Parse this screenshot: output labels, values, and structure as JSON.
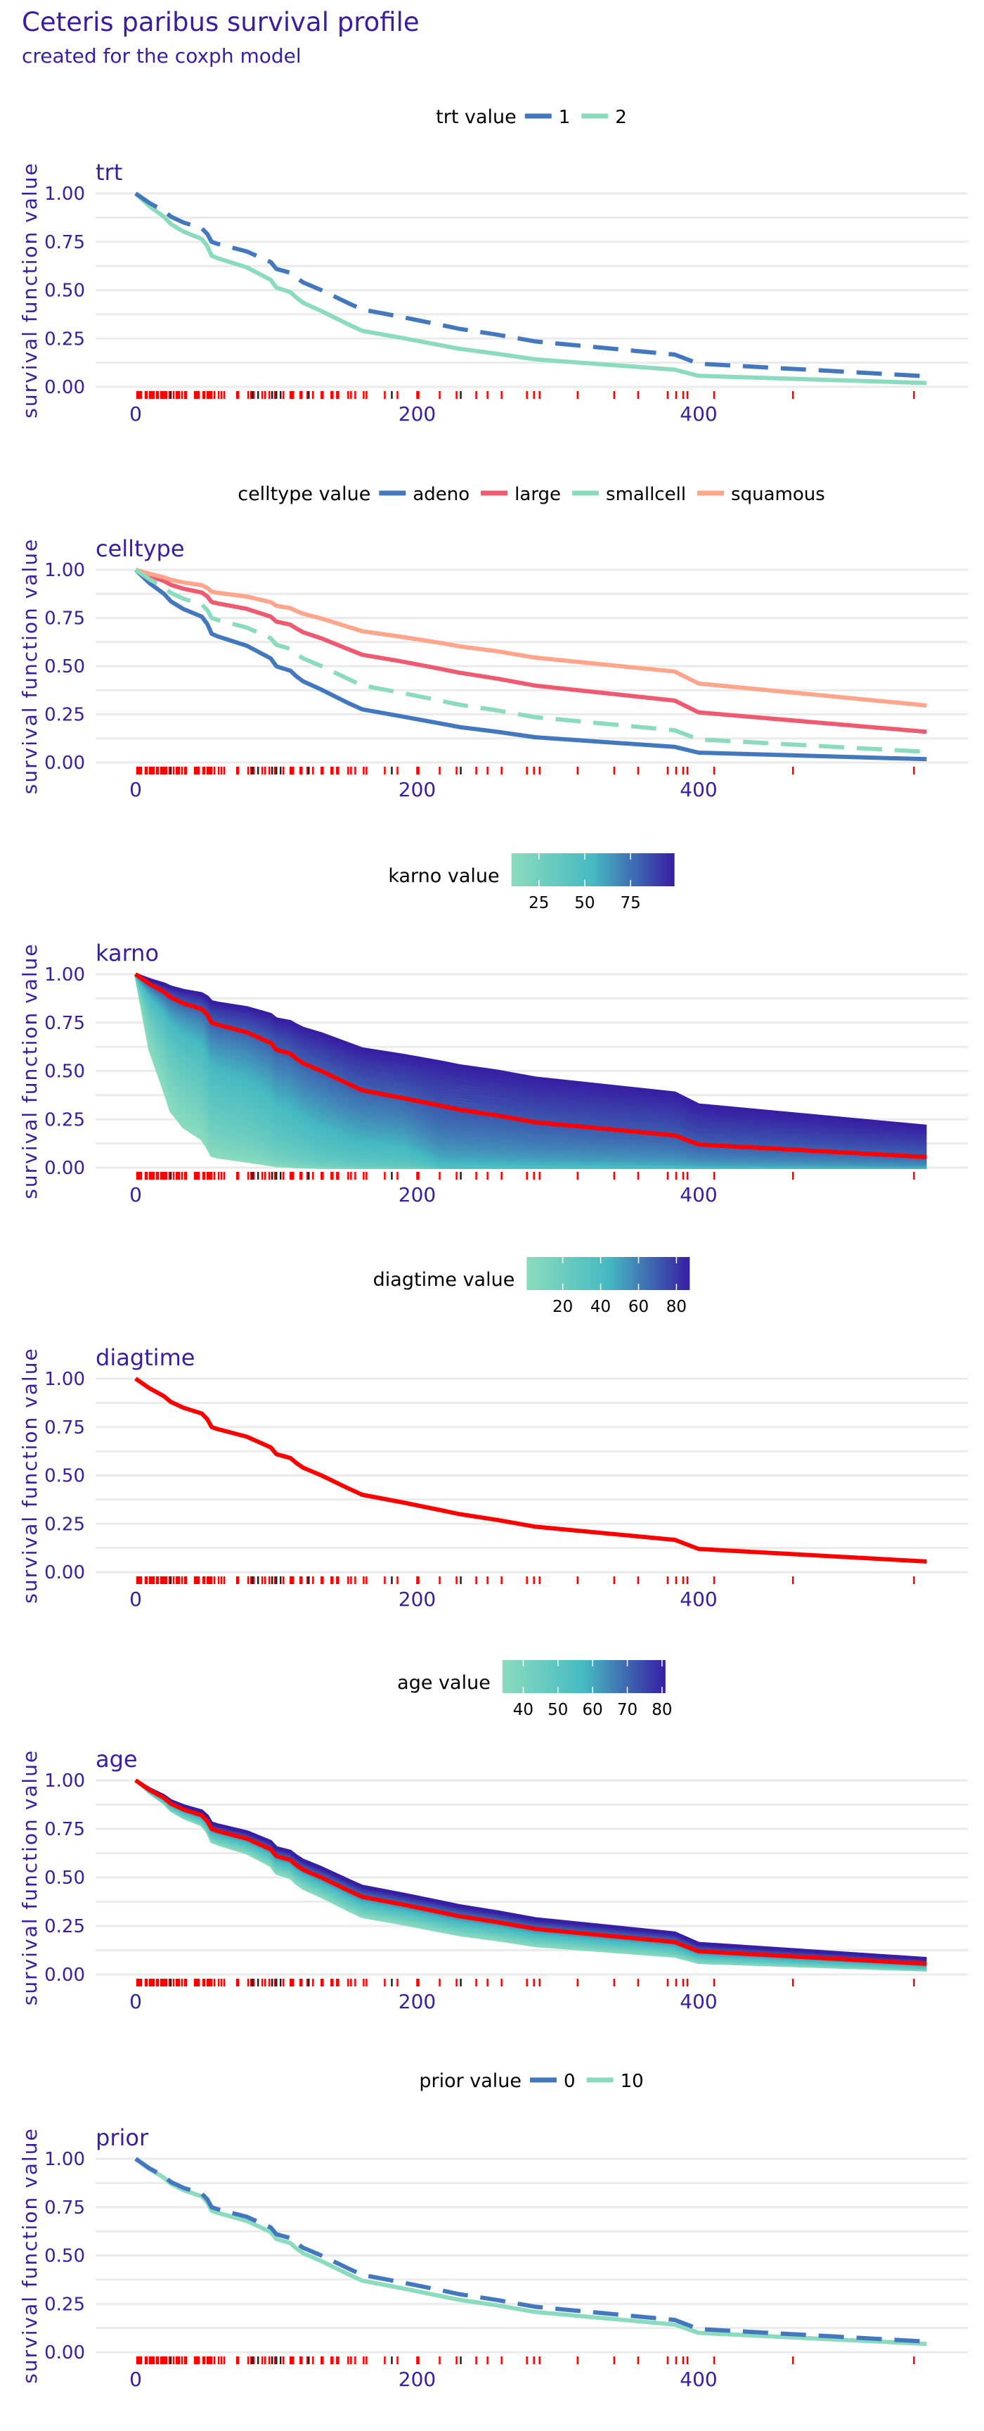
{
  "title": "Ceteris paribus survival profile",
  "subtitle": "created for the coxph model",
  "colors": {
    "text": "#371ea3",
    "grid": "#ebebeb",
    "observed": "#ff0000",
    "rug_event": "#ff0000",
    "rug_censored": "#222222",
    "gradient": [
      "#8bdcbe",
      "#46bac2",
      "#371ea3"
    ]
  },
  "rug": {
    "events": [
      1,
      2,
      3,
      4,
      7,
      8,
      10,
      11,
      12,
      13,
      15,
      16,
      18,
      19,
      20,
      21,
      22,
      24,
      27,
      29,
      30,
      31,
      33,
      35,
      36,
      42,
      43,
      44,
      45,
      48,
      49,
      51,
      52,
      53,
      54,
      56,
      59,
      61,
      63,
      72,
      73,
      80,
      82,
      84,
      90,
      92,
      95,
      99,
      105,
      110,
      111,
      112,
      117,
      118,
      122,
      126,
      132,
      133,
      139,
      140,
      143,
      144,
      151,
      153,
      156,
      162,
      164,
      177,
      186,
      200,
      201,
      216,
      228,
      242,
      250,
      260,
      278,
      283,
      287,
      314,
      340,
      357,
      378,
      384,
      389,
      392,
      411,
      467,
      553
    ],
    "censored": [
      25,
      83,
      87,
      97,
      100,
      103,
      123,
      182,
      231
    ]
  },
  "chart_data": [
    {
      "type": "line",
      "panel_title": "trt",
      "ylabel": "survival function value",
      "legend_title": "trt value",
      "legend_type": "discrete",
      "xticks": [
        "0",
        "200",
        "400"
      ],
      "yticks": [
        "0.00",
        "0.25",
        "0.50",
        "0.75",
        "1.00"
      ],
      "ylim": [
        0,
        1
      ],
      "grid": true,
      "x": [
        0,
        10,
        20,
        25,
        34,
        47,
        51,
        54,
        58,
        79,
        96,
        100,
        110,
        114,
        119,
        132,
        152,
        161,
        190,
        217,
        230,
        257,
        284,
        383,
        400,
        562
      ],
      "series": [
        {
          "name": "1",
          "color": "#4378bf",
          "dashed": true,
          "values": [
            1,
            0.95,
            0.91,
            0.88,
            0.85,
            0.82,
            0.79,
            0.75,
            0.74,
            0.7,
            0.645,
            0.61,
            0.59,
            0.565,
            0.54,
            0.5,
            0.43,
            0.4,
            0.36,
            0.32,
            0.3,
            0.27,
            0.235,
            0.167,
            0.12,
            0.055
          ]
        },
        {
          "name": "2",
          "color": "#8bdcbe",
          "dashed": false,
          "values": [
            1,
            0.933,
            0.88,
            0.842,
            0.803,
            0.765,
            0.727,
            0.678,
            0.666,
            0.618,
            0.553,
            0.513,
            0.49,
            0.463,
            0.435,
            0.392,
            0.32,
            0.29,
            0.252,
            0.215,
            0.197,
            0.171,
            0.142,
            0.089,
            0.057,
            0.02
          ]
        }
      ]
    },
    {
      "type": "line",
      "panel_title": "celltype",
      "ylabel": "survival function value",
      "legend_title": "celltype value",
      "legend_type": "discrete",
      "xticks": [
        "0",
        "200",
        "400"
      ],
      "yticks": [
        "0.00",
        "0.25",
        "0.50",
        "0.75",
        "1.00"
      ],
      "ylim": [
        0,
        1
      ],
      "grid": true,
      "x": [
        0,
        10,
        20,
        25,
        34,
        47,
        51,
        54,
        58,
        79,
        96,
        100,
        110,
        114,
        119,
        132,
        152,
        161,
        190,
        217,
        230,
        257,
        284,
        383,
        400,
        562
      ],
      "series": [
        {
          "name": "adeno",
          "color": "#4378bf",
          "dashed": false,
          "values": [
            1,
            0.93,
            0.876,
            0.836,
            0.796,
            0.757,
            0.718,
            0.668,
            0.655,
            0.606,
            0.54,
            0.499,
            0.476,
            0.448,
            0.421,
            0.378,
            0.305,
            0.276,
            0.238,
            0.202,
            0.184,
            0.159,
            0.131,
            0.081,
            0.051,
            0.017
          ]
        },
        {
          "name": "large",
          "color": "#f05a71",
          "dashed": false,
          "values": [
            1,
            0.968,
            0.942,
            0.922,
            0.902,
            0.882,
            0.861,
            0.833,
            0.826,
            0.797,
            0.757,
            0.731,
            0.715,
            0.696,
            0.676,
            0.644,
            0.585,
            0.559,
            0.523,
            0.485,
            0.466,
            0.435,
            0.399,
            0.321,
            0.26,
            0.159
          ]
        },
        {
          "name": "smallcell",
          "color": "#8bdcbe",
          "dashed": true,
          "values": [
            1,
            0.95,
            0.91,
            0.88,
            0.85,
            0.82,
            0.79,
            0.75,
            0.74,
            0.7,
            0.645,
            0.61,
            0.59,
            0.565,
            0.54,
            0.5,
            0.43,
            0.4,
            0.36,
            0.32,
            0.3,
            0.27,
            0.235,
            0.167,
            0.12,
            0.055
          ]
        },
        {
          "name": "squamous",
          "color": "#ffa58c",
          "dashed": false,
          "values": [
            1,
            0.979,
            0.961,
            0.948,
            0.934,
            0.92,
            0.906,
            0.886,
            0.881,
            0.861,
            0.832,
            0.813,
            0.801,
            0.787,
            0.772,
            0.747,
            0.702,
            0.681,
            0.651,
            0.62,
            0.603,
            0.577,
            0.544,
            0.472,
            0.41,
            0.296
          ]
        }
      ]
    },
    {
      "type": "line",
      "panel_title": "karno",
      "ylabel": "survival function value",
      "legend_title": "karno value",
      "legend_type": "gradient",
      "legend_range": [
        10,
        99
      ],
      "legend_ticks": [
        "25",
        "50",
        "75"
      ],
      "xticks": [
        "0",
        "200",
        "400"
      ],
      "yticks": [
        "0.00",
        "0.25",
        "0.50",
        "0.75",
        "1.00"
      ],
      "ylim": [
        0,
        1
      ],
      "grid": true,
      "x": [
        0,
        10,
        20,
        25,
        34,
        47,
        51,
        54,
        58,
        79,
        96,
        100,
        110,
        114,
        119,
        132,
        152,
        161,
        190,
        217,
        230,
        257,
        284,
        383,
        400,
        562
      ],
      "observed": [
        1,
        0.95,
        0.91,
        0.88,
        0.85,
        0.82,
        0.79,
        0.75,
        0.74,
        0.7,
        0.645,
        0.61,
        0.59,
        0.565,
        0.54,
        0.5,
        0.43,
        0.4,
        0.36,
        0.32,
        0.3,
        0.27,
        0.235,
        0.167,
        0.12,
        0.055
      ],
      "profile_min": {
        "value": 10,
        "values": [
          1,
          0.611,
          0.404,
          0.293,
          0.21,
          0.149,
          0.104,
          0.063,
          0.055,
          0.033,
          0.015,
          0.009,
          0.006,
          0.004,
          0.003,
          0.001,
          0.0003,
          0.0002,
          0.0001,
          0,
          0,
          0,
          0,
          0,
          0,
          0
        ]
      },
      "profile_max": {
        "value": 99,
        "values": [
          1,
          0.973,
          0.951,
          0.935,
          0.917,
          0.9,
          0.883,
          0.859,
          0.852,
          0.828,
          0.793,
          0.77,
          0.756,
          0.739,
          0.721,
          0.693,
          0.639,
          0.615,
          0.582,
          0.547,
          0.528,
          0.5,
          0.464,
          0.387,
          0.325,
          0.215
        ]
      }
    },
    {
      "type": "line",
      "panel_title": "diagtime",
      "ylabel": "survival function value",
      "legend_title": "diagtime value",
      "legend_type": "gradient",
      "legend_range": [
        1,
        87
      ],
      "legend_ticks": [
        "20",
        "40",
        "60",
        "80"
      ],
      "xticks": [
        "0",
        "200",
        "400"
      ],
      "yticks": [
        "0.00",
        "0.25",
        "0.50",
        "0.75",
        "1.00"
      ],
      "ylim": [
        0,
        1
      ],
      "grid": true,
      "x": [
        0,
        10,
        20,
        25,
        34,
        47,
        51,
        54,
        58,
        79,
        96,
        100,
        110,
        114,
        119,
        132,
        152,
        161,
        190,
        217,
        230,
        257,
        284,
        383,
        400,
        562
      ],
      "observed": [
        1,
        0.95,
        0.91,
        0.88,
        0.85,
        0.82,
        0.79,
        0.75,
        0.74,
        0.7,
        0.645,
        0.61,
        0.59,
        0.565,
        0.54,
        0.5,
        0.43,
        0.4,
        0.36,
        0.32,
        0.3,
        0.27,
        0.235,
        0.167,
        0.12,
        0.055
      ],
      "profile_min": {
        "value": 1,
        "values": [
          1,
          0.95,
          0.91,
          0.88,
          0.85,
          0.82,
          0.79,
          0.75,
          0.74,
          0.7,
          0.645,
          0.61,
          0.59,
          0.565,
          0.54,
          0.5,
          0.43,
          0.4,
          0.36,
          0.32,
          0.3,
          0.27,
          0.235,
          0.167,
          0.12,
          0.055
        ]
      },
      "profile_max": {
        "value": 87,
        "values": [
          1,
          0.95,
          0.91,
          0.88,
          0.85,
          0.82,
          0.79,
          0.75,
          0.74,
          0.7,
          0.645,
          0.61,
          0.59,
          0.565,
          0.54,
          0.5,
          0.43,
          0.4,
          0.36,
          0.32,
          0.3,
          0.27,
          0.235,
          0.167,
          0.12,
          0.055
        ]
      }
    },
    {
      "type": "line",
      "panel_title": "age",
      "ylabel": "survival function value",
      "legend_title": "age value",
      "legend_type": "gradient",
      "legend_range": [
        34,
        81
      ],
      "legend_ticks": [
        "40",
        "50",
        "60",
        "70",
        "80"
      ],
      "xticks": [
        "0",
        "200",
        "400"
      ],
      "yticks": [
        "0.00",
        "0.25",
        "0.50",
        "0.75",
        "1.00"
      ],
      "ylim": [
        0,
        1
      ],
      "grid": true,
      "x": [
        0,
        10,
        20,
        25,
        34,
        47,
        51,
        54,
        58,
        79,
        96,
        100,
        110,
        114,
        119,
        132,
        152,
        161,
        190,
        217,
        230,
        257,
        284,
        383,
        400,
        562
      ],
      "observed": [
        1,
        0.95,
        0.91,
        0.88,
        0.85,
        0.82,
        0.79,
        0.75,
        0.74,
        0.7,
        0.645,
        0.61,
        0.59,
        0.565,
        0.54,
        0.5,
        0.43,
        0.4,
        0.36,
        0.32,
        0.3,
        0.27,
        0.235,
        0.167,
        0.12,
        0.055
      ],
      "profile_min": {
        "value": 34,
        "values": [
          1,
          0.935,
          0.883,
          0.845,
          0.807,
          0.77,
          0.733,
          0.684,
          0.672,
          0.625,
          0.561,
          0.521,
          0.498,
          0.471,
          0.443,
          0.401,
          0.328,
          0.298,
          0.26,
          0.222,
          0.204,
          0.178,
          0.148,
          0.094,
          0.061,
          0.022
        ]
      },
      "profile_max": {
        "value": 81,
        "values": [
          1,
          0.957,
          0.922,
          0.896,
          0.87,
          0.843,
          0.817,
          0.781,
          0.772,
          0.736,
          0.686,
          0.654,
          0.635,
          0.612,
          0.589,
          0.551,
          0.484,
          0.455,
          0.415,
          0.375,
          0.355,
          0.324,
          0.288,
          0.215,
          0.161,
          0.083
        ]
      }
    },
    {
      "type": "line",
      "panel_title": "prior",
      "ylabel": "survival function value",
      "legend_title": "prior value",
      "legend_type": "discrete",
      "xticks": [
        "0",
        "200",
        "400"
      ],
      "yticks": [
        "0.00",
        "0.25",
        "0.50",
        "0.75",
        "1.00"
      ],
      "ylim": [
        0,
        1
      ],
      "grid": true,
      "x": [
        0,
        10,
        20,
        25,
        34,
        47,
        51,
        54,
        58,
        79,
        96,
        100,
        110,
        114,
        119,
        132,
        152,
        161,
        190,
        217,
        230,
        257,
        284,
        383,
        400,
        562
      ],
      "series": [
        {
          "name": "0",
          "color": "#4378bf",
          "dashed": true,
          "values": [
            1,
            0.95,
            0.91,
            0.88,
            0.85,
            0.82,
            0.79,
            0.75,
            0.74,
            0.7,
            0.645,
            0.61,
            0.59,
            0.565,
            0.54,
            0.5,
            0.43,
            0.4,
            0.36,
            0.32,
            0.3,
            0.27,
            0.235,
            0.167,
            0.12,
            0.055
          ]
        },
        {
          "name": "10",
          "color": "#8bdcbe",
          "dashed": false,
          "values": [
            1,
            0.946,
            0.903,
            0.871,
            0.838,
            0.806,
            0.774,
            0.732,
            0.721,
            0.679,
            0.621,
            0.585,
            0.564,
            0.538,
            0.512,
            0.471,
            0.4,
            0.37,
            0.33,
            0.29,
            0.271,
            0.242,
            0.208,
            0.143,
            0.1,
            0.043
          ]
        }
      ]
    }
  ]
}
